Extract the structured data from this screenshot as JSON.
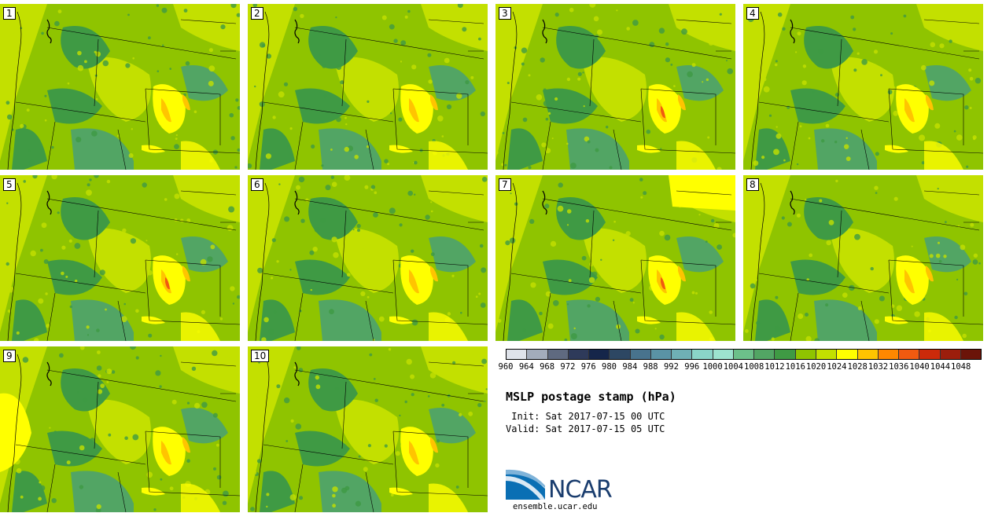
{
  "panels": [
    {
      "label": "1"
    },
    {
      "label": "2"
    },
    {
      "label": "3"
    },
    {
      "label": "4"
    },
    {
      "label": "5"
    },
    {
      "label": "6"
    },
    {
      "label": "7"
    },
    {
      "label": "8"
    },
    {
      "label": "9"
    },
    {
      "label": "10"
    }
  ],
  "colorbar": {
    "levels": [
      "960",
      "964",
      "968",
      "972",
      "976",
      "980",
      "984",
      "988",
      "992",
      "996",
      "1000",
      "1004",
      "1008",
      "1012",
      "1016",
      "1020",
      "1024",
      "1028",
      "1032",
      "1036",
      "1040",
      "1044",
      "1048"
    ],
    "colors": [
      "#dfe3ea",
      "#a3acbb",
      "#5f6a80",
      "#2e3a5a",
      "#15264a",
      "#2d4763",
      "#48738d",
      "#5a93a5",
      "#6fb0b5",
      "#8ad4c8",
      "#9de3cf",
      "#6cc08a",
      "#52a564",
      "#3f9a44",
      "#8fc400",
      "#c3e000",
      "#ffff00",
      "#ffc400",
      "#ff8800",
      "#f05a10",
      "#cc2a0a",
      "#9c1e0c",
      "#6b1409"
    ]
  },
  "title": "MSLP postage stamp (hPa)",
  "init": " Init: Sat 2017-07-15 00 UTC",
  "valid": "Valid: Sat 2017-07-15 05 UTC",
  "logo": {
    "name": "NCAR",
    "url": "ensemble.ucar.edu"
  }
}
